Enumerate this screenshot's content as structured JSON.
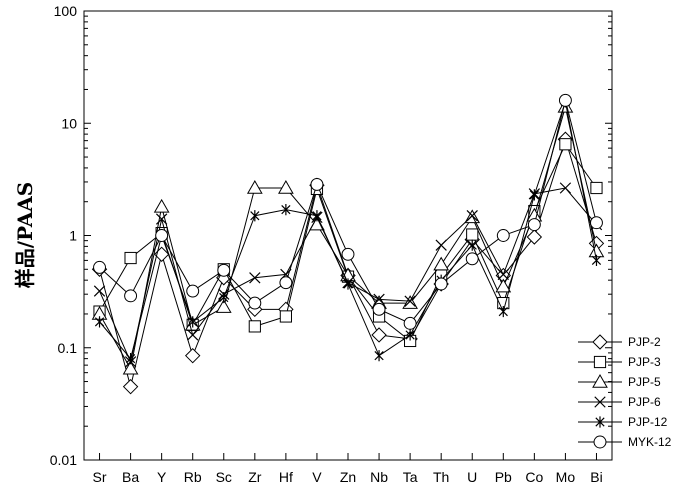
{
  "chart_data": {
    "type": "line",
    "title": "",
    "xlabel": "",
    "ylabel": "样品/PAAS",
    "yscale": "log",
    "ylim": [
      0.01,
      100
    ],
    "yticks": [
      "0.01",
      "0.1",
      "1",
      "10",
      "100"
    ],
    "legend_position": "bottom-right",
    "grid": false,
    "categories": [
      "Sr",
      "Ba",
      "Y",
      "Rb",
      "Sc",
      "Zr",
      "Hf",
      "V",
      "Zn",
      "Nb",
      "Ta",
      "Th",
      "U",
      "Pb",
      "Co",
      "Mo",
      "Bi"
    ],
    "series": [
      {
        "name": "PJP-2",
        "marker": "diamond",
        "values": [
          0.5,
          0.045,
          0.68,
          0.085,
          0.42,
          0.22,
          0.22,
          2.8,
          0.44,
          0.13,
          0.12,
          0.37,
          0.92,
          0.44,
          0.97,
          7.2,
          0.85
        ]
      },
      {
        "name": "PJP-3",
        "marker": "square",
        "values": [
          0.21,
          0.63,
          1.05,
          0.16,
          0.5,
          0.155,
          0.19,
          2.6,
          0.43,
          0.19,
          0.115,
          0.44,
          1.02,
          0.25,
          1.65,
          6.5,
          2.65
        ]
      },
      {
        "name": "PJP-5",
        "marker": "triangle",
        "values": [
          0.2,
          0.065,
          1.8,
          0.16,
          0.23,
          2.65,
          2.65,
          1.25,
          0.44,
          0.25,
          0.25,
          0.55,
          1.45,
          0.35,
          1.5,
          14.0,
          0.72
        ]
      },
      {
        "name": "PJP-6",
        "marker": "x",
        "values": [
          0.32,
          0.075,
          1.4,
          0.13,
          0.3,
          0.42,
          0.45,
          1.45,
          0.38,
          0.27,
          0.26,
          0.82,
          1.5,
          0.45,
          2.35,
          2.65,
          1.25
        ]
      },
      {
        "name": "PJP-12",
        "marker": "asterisk",
        "values": [
          0.17,
          0.08,
          1.0,
          0.17,
          0.28,
          1.5,
          1.7,
          1.5,
          0.37,
          0.085,
          0.13,
          0.4,
          0.82,
          0.21,
          2.3,
          15.5,
          0.6
        ]
      },
      {
        "name": "MYK-12",
        "marker": "circle",
        "values": [
          0.52,
          0.29,
          1.0,
          0.32,
          0.49,
          0.25,
          0.38,
          2.85,
          0.68,
          0.22,
          0.165,
          0.37,
          0.62,
          1.0,
          1.25,
          16.0,
          1.3
        ]
      }
    ]
  }
}
